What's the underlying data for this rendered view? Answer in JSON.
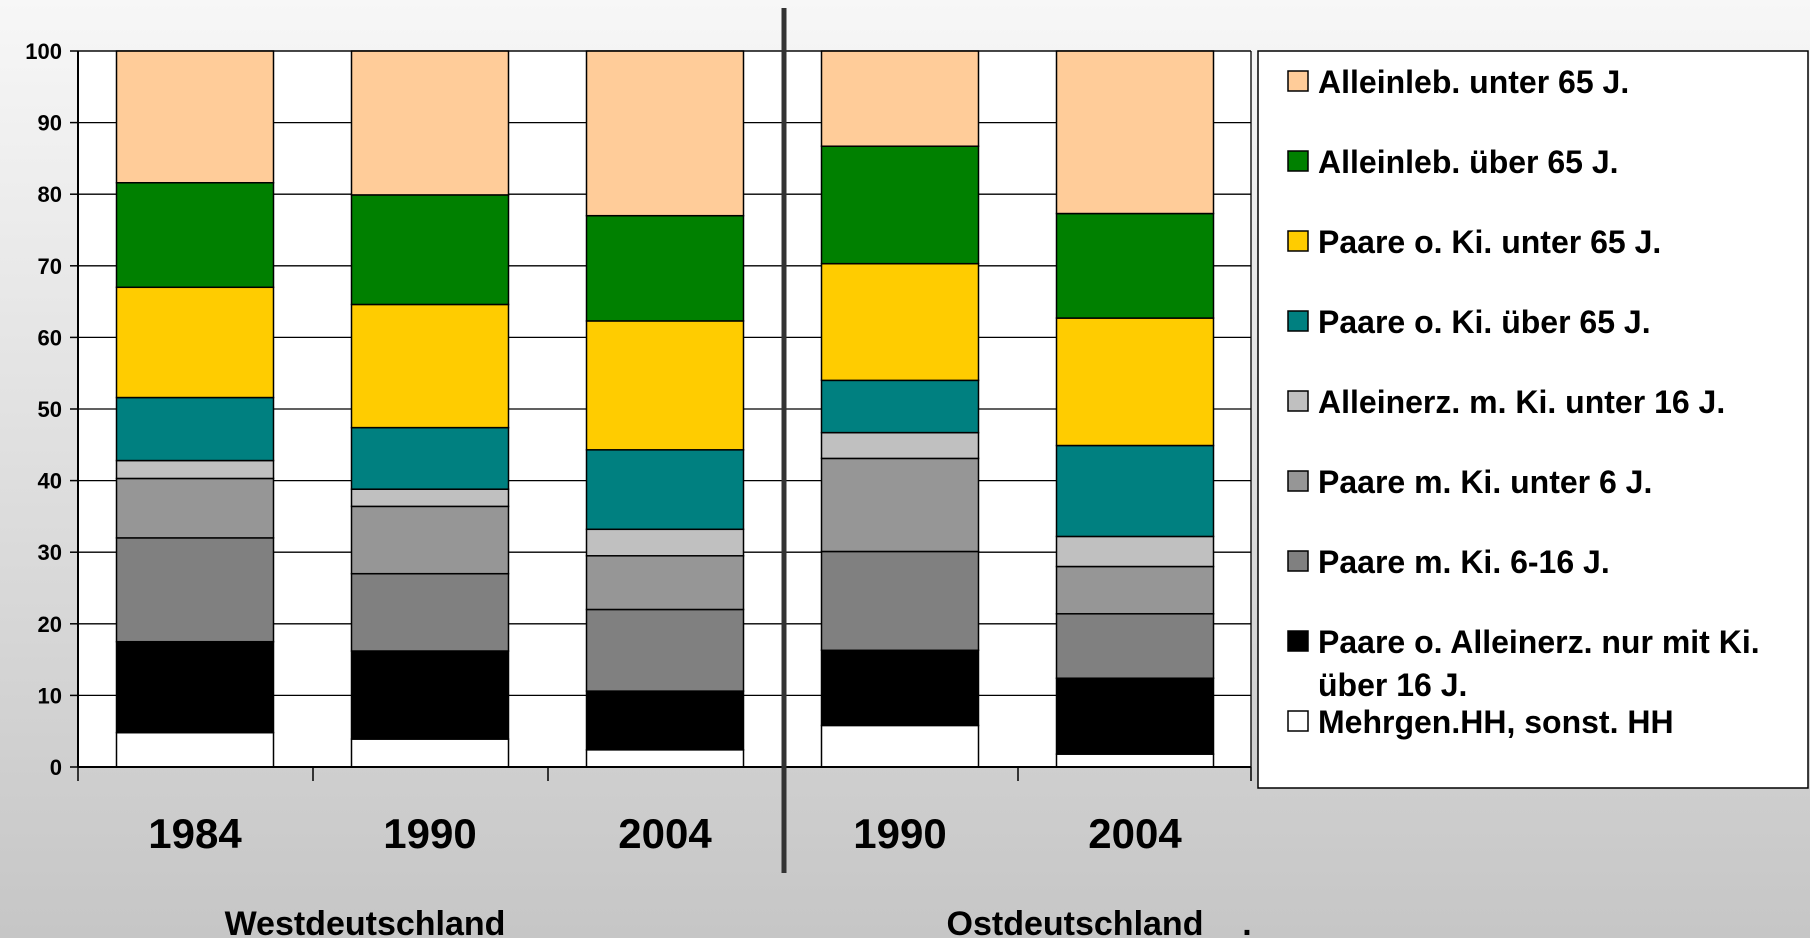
{
  "chart_data": {
    "type": "bar",
    "stacked": true,
    "ylim": [
      0,
      100
    ],
    "yticks": [
      0,
      10,
      20,
      30,
      40,
      50,
      60,
      70,
      80,
      90,
      100
    ],
    "grid": true,
    "legend_position": "right",
    "categories": [
      "1984",
      "1990",
      "2004",
      "1990",
      "2004"
    ],
    "groups": [
      {
        "label": "Westdeutschland",
        "categories": [
          "1984",
          "1990",
          "2004"
        ]
      },
      {
        "label": "Ostdeutschland",
        "categories": [
          "1990",
          "2004"
        ]
      }
    ],
    "group_label_suffix": ".",
    "series": [
      {
        "name": "Mehrgen.HH, sonst. HH",
        "color": "#ffffff",
        "values": [
          4.8,
          3.9,
          2.4,
          5.8,
          1.8
        ]
      },
      {
        "name": "Paare o. Alleinerz. nur mit Ki. über 16 J.",
        "color": "#000000",
        "values": [
          12.7,
          12.3,
          8.2,
          10.5,
          10.6
        ]
      },
      {
        "name": "Paare m. Ki. 6-16 J.",
        "color": "#808080",
        "values": [
          14.5,
          10.8,
          11.4,
          13.8,
          9.0
        ]
      },
      {
        "name": "Paare m. Ki. unter 6 J.",
        "color": "#969696",
        "values": [
          8.3,
          9.4,
          7.5,
          13.0,
          6.6
        ]
      },
      {
        "name": "Alleinerz. m. Ki. unter 16 J.",
        "color": "#c0c0c0",
        "values": [
          2.5,
          2.4,
          3.7,
          3.6,
          4.2
        ]
      },
      {
        "name": "Paare o. Ki. über 65 J.",
        "color": "#008080",
        "values": [
          8.8,
          8.6,
          11.1,
          7.3,
          12.7
        ]
      },
      {
        "name": "Paare o. Ki. unter 65 J.",
        "color": "#ffcc00",
        "values": [
          15.4,
          17.2,
          18.0,
          16.3,
          17.8
        ]
      },
      {
        "name": "Alleinleb. über 65 J.",
        "color": "#008000",
        "values": [
          14.6,
          15.3,
          14.7,
          16.4,
          14.6
        ]
      },
      {
        "name": "Alleinleb. unter 65 J.",
        "color": "#ffcc99",
        "values": [
          18.4,
          20.1,
          23.0,
          13.3,
          22.7
        ]
      }
    ]
  }
}
